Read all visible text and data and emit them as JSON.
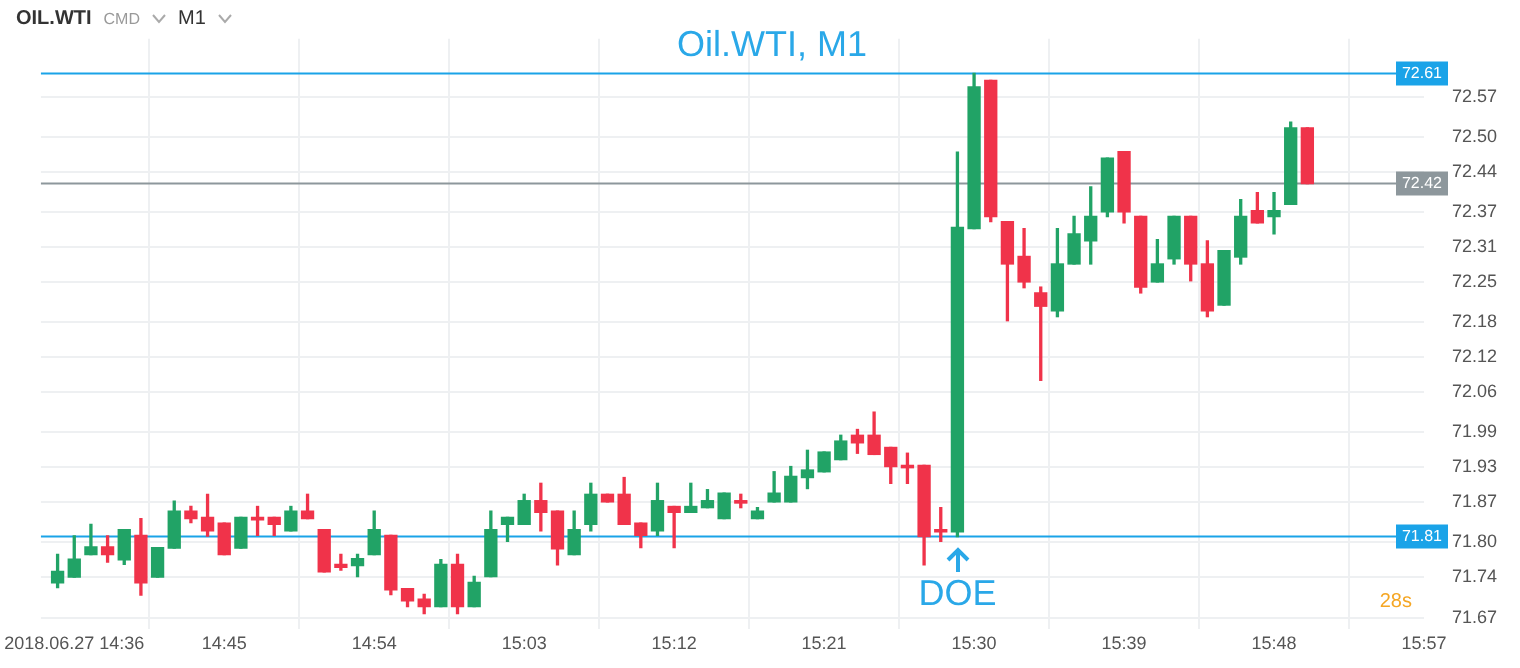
{
  "chart_data": {
    "type": "candlestick",
    "title": "Oil.WTI, M1",
    "x": [
      "2018-06-27T14:35",
      "2018-06-27T14:36",
      "2018-06-27T14:37",
      "2018-06-27T14:38",
      "2018-06-27T14:39",
      "2018-06-27T14:40",
      "2018-06-27T14:41",
      "2018-06-27T14:42",
      "2018-06-27T14:43",
      "2018-06-27T14:44",
      "2018-06-27T14:45",
      "2018-06-27T14:46",
      "2018-06-27T14:47",
      "2018-06-27T14:48",
      "2018-06-27T14:49",
      "2018-06-27T14:50",
      "2018-06-27T14:51",
      "2018-06-27T14:52",
      "2018-06-27T14:53",
      "2018-06-27T14:54",
      "2018-06-27T14:55",
      "2018-06-27T14:56",
      "2018-06-27T14:57",
      "2018-06-27T14:58",
      "2018-06-27T14:59",
      "2018-06-27T15:00",
      "2018-06-27T15:01",
      "2018-06-27T15:02",
      "2018-06-27T15:03",
      "2018-06-27T15:04",
      "2018-06-27T15:05",
      "2018-06-27T15:06",
      "2018-06-27T15:07",
      "2018-06-27T15:08",
      "2018-06-27T15:09",
      "2018-06-27T15:10",
      "2018-06-27T15:11",
      "2018-06-27T15:12",
      "2018-06-27T15:13",
      "2018-06-27T15:14",
      "2018-06-27T15:15",
      "2018-06-27T15:16",
      "2018-06-27T15:17",
      "2018-06-27T15:18",
      "2018-06-27T15:19",
      "2018-06-27T15:20",
      "2018-06-27T15:21",
      "2018-06-27T15:22",
      "2018-06-27T15:23",
      "2018-06-27T15:24",
      "2018-06-27T15:25",
      "2018-06-27T15:26",
      "2018-06-27T15:27",
      "2018-06-27T15:28",
      "2018-06-27T15:29",
      "2018-06-27T15:30",
      "2018-06-27T15:31",
      "2018-06-27T15:32",
      "2018-06-27T15:33",
      "2018-06-27T15:34",
      "2018-06-27T15:35",
      "2018-06-27T15:36",
      "2018-06-27T15:37",
      "2018-06-27T15:38",
      "2018-06-27T15:39",
      "2018-06-27T15:40",
      "2018-06-27T15:41",
      "2018-06-27T15:42",
      "2018-06-27T15:43",
      "2018-06-27T15:44",
      "2018-06-27T15:45",
      "2018-06-27T15:46",
      "2018-06-27T15:47",
      "2018-06-27T15:48",
      "2018-06-27T15:49",
      "2018-06-27T15:50"
    ],
    "ohlc": [
      [
        71.73,
        71.779,
        71.722,
        71.75
      ],
      [
        71.74,
        71.811,
        71.74,
        71.771
      ],
      [
        71.779,
        71.831,
        71.779,
        71.792
      ],
      [
        71.792,
        71.811,
        71.766,
        71.779
      ],
      [
        71.77,
        71.822,
        71.762,
        71.822
      ],
      [
        71.812,
        71.841,
        71.709,
        71.73
      ],
      [
        71.74,
        71.791,
        71.74,
        71.791
      ],
      [
        71.79,
        71.871,
        71.79,
        71.854
      ],
      [
        71.854,
        71.862,
        71.834,
        71.841
      ],
      [
        71.843,
        71.883,
        71.811,
        71.82
      ],
      [
        71.833,
        71.833,
        71.779,
        71.779
      ],
      [
        71.79,
        71.843,
        71.79,
        71.843
      ],
      [
        71.843,
        71.862,
        71.812,
        71.839
      ],
      [
        71.843,
        71.843,
        71.812,
        71.831
      ],
      [
        71.82,
        71.862,
        71.82,
        71.854
      ],
      [
        71.854,
        71.883,
        71.841,
        71.841
      ],
      [
        71.822,
        71.822,
        71.749,
        71.749
      ],
      [
        71.762,
        71.779,
        71.752,
        71.757
      ],
      [
        71.76,
        71.779,
        71.741,
        71.772
      ],
      [
        71.779,
        71.854,
        71.779,
        71.822
      ],
      [
        71.812,
        71.812,
        71.71,
        71.718
      ],
      [
        71.72,
        71.72,
        71.689,
        71.699
      ],
      [
        71.702,
        71.71,
        71.677,
        71.689
      ],
      [
        71.689,
        71.77,
        71.689,
        71.762
      ],
      [
        71.762,
        71.779,
        71.677,
        71.689
      ],
      [
        71.689,
        71.741,
        71.689,
        71.731
      ],
      [
        71.741,
        71.854,
        71.741,
        71.822
      ],
      [
        71.831,
        71.843,
        71.802,
        71.843
      ],
      [
        71.831,
        71.883,
        71.831,
        71.872
      ],
      [
        71.872,
        71.902,
        71.82,
        71.852
      ],
      [
        71.854,
        71.854,
        71.761,
        71.789
      ],
      [
        71.779,
        71.854,
        71.779,
        71.822
      ],
      [
        71.831,
        71.902,
        71.82,
        71.883
      ],
      [
        71.883,
        71.883,
        71.87,
        71.87
      ],
      [
        71.883,
        71.912,
        71.831,
        71.831
      ],
      [
        71.833,
        71.833,
        71.791,
        71.812
      ],
      [
        71.82,
        71.902,
        71.812,
        71.872
      ],
      [
        71.862,
        71.862,
        71.791,
        71.852
      ],
      [
        71.852,
        71.902,
        71.852,
        71.862
      ],
      [
        71.86,
        71.891,
        71.86,
        71.872
      ],
      [
        71.841,
        71.885,
        71.841,
        71.885
      ],
      [
        71.872,
        71.883,
        71.86,
        71.868
      ],
      [
        71.841,
        71.86,
        71.841,
        71.854
      ],
      [
        71.87,
        71.922,
        71.87,
        71.885
      ],
      [
        71.87,
        71.931,
        71.87,
        71.914
      ],
      [
        71.912,
        71.959,
        71.893,
        71.925
      ],
      [
        71.922,
        71.956,
        71.922,
        71.956
      ],
      [
        71.943,
        71.985,
        71.943,
        71.975
      ],
      [
        71.985,
        71.995,
        71.954,
        71.972
      ],
      [
        71.985,
        72.025,
        71.952,
        71.952
      ],
      [
        71.964,
        71.964,
        71.902,
        71.931
      ],
      [
        71.933,
        71.954,
        71.902,
        71.929
      ],
      [
        71.933,
        71.933,
        71.761,
        71.81
      ],
      [
        71.822,
        71.86,
        71.802,
        71.818
      ],
      [
        71.818,
        72.474,
        71.81,
        72.344
      ],
      [
        72.342,
        72.61,
        72.342,
        72.587
      ],
      [
        72.598,
        72.598,
        72.354,
        72.363
      ],
      [
        72.354,
        72.354,
        72.183,
        72.281
      ],
      [
        72.294,
        72.342,
        72.24,
        72.25
      ],
      [
        72.231,
        72.241,
        72.08,
        72.208
      ],
      [
        72.2,
        72.342,
        72.19,
        72.281
      ],
      [
        72.281,
        72.363,
        72.281,
        72.333
      ],
      [
        72.321,
        72.414,
        72.281,
        72.363
      ],
      [
        72.371,
        72.464,
        72.363,
        72.464
      ],
      [
        72.475,
        72.475,
        72.352,
        72.371
      ],
      [
        72.363,
        72.363,
        72.231,
        72.241
      ],
      [
        72.25,
        72.323,
        72.25,
        72.281
      ],
      [
        72.29,
        72.363,
        72.281,
        72.363
      ],
      [
        72.363,
        72.363,
        72.252,
        72.281
      ],
      [
        72.281,
        72.321,
        72.19,
        72.2
      ],
      [
        72.21,
        72.304,
        72.21,
        72.304
      ],
      [
        72.293,
        72.392,
        72.281,
        72.363
      ],
      [
        72.373,
        72.404,
        72.352,
        72.352
      ],
      [
        72.363,
        72.404,
        72.333,
        72.373
      ],
      [
        72.384,
        72.526,
        72.384,
        72.516
      ],
      [
        72.516,
        72.516,
        72.42,
        72.42
      ]
    ],
    "colors": [
      "#21a366",
      "#21a366",
      "#21a366",
      "#f0334a",
      "#21a366",
      "#f0334a",
      "#21a366",
      "#21a366",
      "#f0334a",
      "#f0334a",
      "#f0334a",
      "#21a366",
      "#f0334a",
      "#f0334a",
      "#21a366",
      "#f0334a",
      "#f0334a",
      "#f0334a",
      "#21a366",
      "#21a366",
      "#f0334a",
      "#f0334a",
      "#f0334a",
      "#21a366",
      "#f0334a",
      "#21a366",
      "#21a366",
      "#21a366",
      "#21a366",
      "#f0334a",
      "#f0334a",
      "#21a366",
      "#21a366",
      "#f0334a",
      "#f0334a",
      "#f0334a",
      "#21a366",
      "#f0334a",
      "#21a366",
      "#21a366",
      "#21a366",
      "#f0334a",
      "#21a366",
      "#21a366",
      "#21a366",
      "#21a366",
      "#21a366",
      "#21a366",
      "#f0334a",
      "#f0334a",
      "#f0334a",
      "#f0334a",
      "#f0334a",
      "#f0334a",
      "#21a366",
      "#21a366",
      "#f0334a",
      "#f0334a",
      "#f0334a",
      "#f0334a",
      "#21a366",
      "#21a366",
      "#21a366",
      "#21a366",
      "#f0334a",
      "#f0334a",
      "#21a366",
      "#21a366",
      "#f0334a",
      "#f0334a",
      "#21a366",
      "#21a366",
      "#f0334a",
      "#21a366",
      "#21a366",
      "#f0334a"
    ],
    "xlim": [
      "2018-06-27T14:34",
      "2018-06-27T15:57"
    ],
    "xticks": [
      {
        "value": "2018-06-27T14:36",
        "label": "2018.06.27 14:36"
      },
      {
        "value": "2018-06-27T14:45",
        "label": "14:45"
      },
      {
        "value": "2018-06-27T14:54",
        "label": "14:54"
      },
      {
        "value": "2018-06-27T15:03",
        "label": "15:03"
      },
      {
        "value": "2018-06-27T15:12",
        "label": "15:12"
      },
      {
        "value": "2018-06-27T15:21",
        "label": "15:21"
      },
      {
        "value": "2018-06-27T15:30",
        "label": "15:30"
      },
      {
        "value": "2018-06-27T15:39",
        "label": "15:39"
      },
      {
        "value": "2018-06-27T15:48",
        "label": "15:48"
      },
      {
        "value": "2018-06-27T15:57",
        "label": "15:57"
      }
    ],
    "ylim": [
      71.65,
      72.67
    ],
    "yticks": [
      71.67,
      71.74,
      {
        "value": 71.8,
        "label": "71.80"
      },
      71.87,
      71.93,
      71.99,
      72.06,
      72.12,
      72.18,
      72.25,
      72.31,
      72.37,
      72.44,
      {
        "value": 72.5,
        "label": "72.50"
      },
      72.57
    ],
    "grid": true,
    "ref_lines": [
      {
        "axis": "y",
        "value": 72.61,
        "label": "72.61",
        "color": "#1aa3e8"
      },
      {
        "axis": "y",
        "value": 71.81,
        "label": "71.81",
        "color": "#1aa3e8"
      },
      {
        "axis": "y",
        "value": 72.42,
        "label": "72.42",
        "color": "#8d979c"
      }
    ],
    "annotations": [
      "OIL.WTI",
      "CMD",
      "M1",
      "28s",
      {
        "text": "DOE",
        "x": "2018-06-27T15:29",
        "y": 71.81
      }
    ]
  }
}
